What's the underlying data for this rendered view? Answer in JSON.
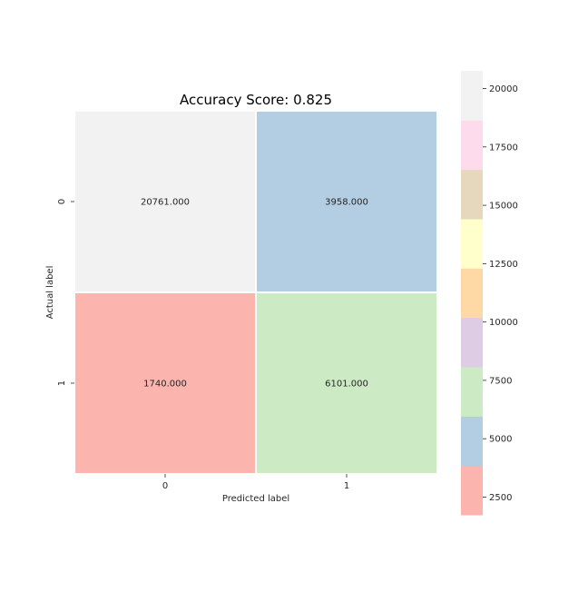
{
  "chart_data": {
    "type": "heatmap",
    "title": "Accuracy Score: 0.825",
    "xlabel": "Predicted label",
    "ylabel": "Actual label",
    "x_categories": [
      "0",
      "1"
    ],
    "y_categories": [
      "0",
      "1"
    ],
    "matrix": [
      [
        20761,
        3958
      ],
      [
        1740,
        6101
      ]
    ],
    "cell_labels": [
      [
        "20761.000",
        "3958.000"
      ],
      [
        "1740.000",
        "6101.000"
      ]
    ],
    "colormap": "Pastel1",
    "colorbar": {
      "range": [
        1740,
        20761
      ],
      "ticks": [
        2500,
        5000,
        7500,
        10000,
        12500,
        15000,
        17500,
        20000
      ],
      "tick_labels": [
        "2500",
        "5000",
        "7500",
        "10000",
        "12500",
        "15000",
        "17500",
        "20000"
      ],
      "colors": [
        "#fbb4ae",
        "#b3cde3",
        "#ccebc5",
        "#decbe4",
        "#fed9a6",
        "#ffffcc",
        "#e5d8bd",
        "#fddaec",
        "#f2f2f2"
      ]
    },
    "grid": false,
    "legend": "colorbar-right"
  }
}
